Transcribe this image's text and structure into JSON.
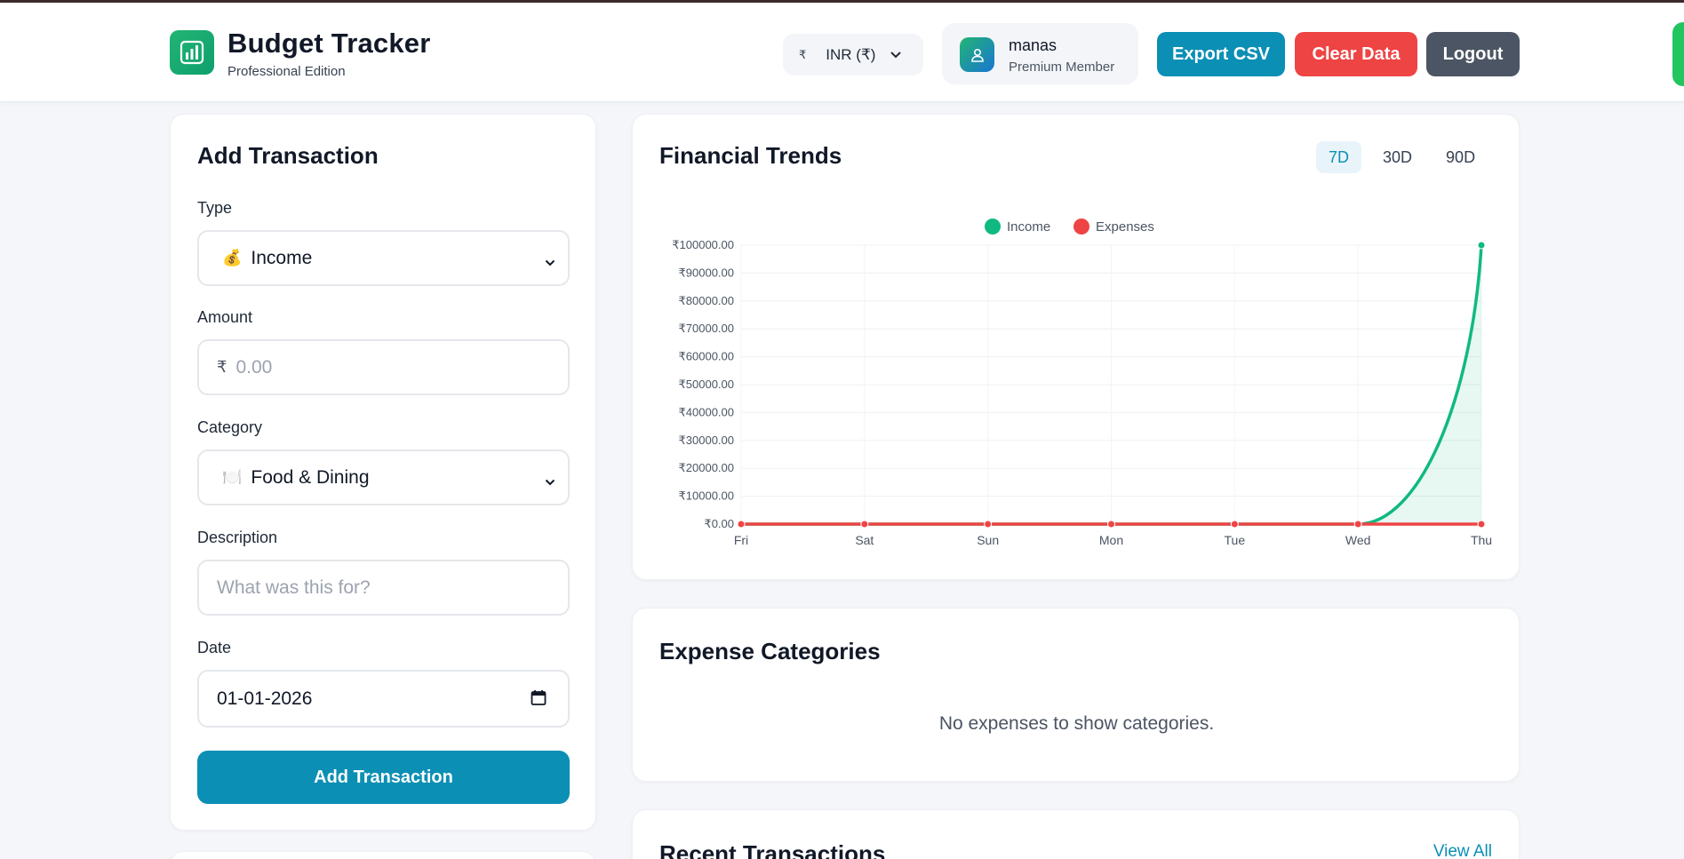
{
  "header": {
    "title": "Budget Tracker",
    "subtitle": "Professional Edition",
    "currency": {
      "symbol": "₹",
      "label": "INR (₹)"
    },
    "user": {
      "name": "manas",
      "role": "Premium Member"
    },
    "buttons": {
      "export": "Export CSV",
      "clear": "Clear Data",
      "logout": "Logout"
    }
  },
  "form": {
    "title": "Add Transaction",
    "type": {
      "label": "Type",
      "icon": "💰",
      "value": "Income"
    },
    "amount": {
      "label": "Amount",
      "prefix": "₹",
      "placeholder": "0.00"
    },
    "category": {
      "label": "Category",
      "icon": "🍽️",
      "value": "Food & Dining"
    },
    "description": {
      "label": "Description",
      "placeholder": "What was this for?"
    },
    "date": {
      "label": "Date",
      "value": "01-01-2026"
    },
    "submit": "Add Transaction"
  },
  "trends": {
    "title": "Financial Trends",
    "ranges": [
      "7D",
      "30D",
      "90D"
    ],
    "active_range": "7D"
  },
  "chart_data": {
    "type": "line",
    "categories": [
      "Fri",
      "Sat",
      "Sun",
      "Mon",
      "Tue",
      "Wed",
      "Thu"
    ],
    "series": [
      {
        "name": "Income",
        "color": "#10b981",
        "values": [
          0,
          0,
          0,
          0,
          0,
          0,
          100000
        ]
      },
      {
        "name": "Expenses",
        "color": "#ef4444",
        "values": [
          0,
          0,
          0,
          0,
          0,
          0,
          0
        ]
      }
    ],
    "ylim": [
      0,
      100000
    ],
    "yticks": [
      "₹0.00",
      "₹10000.00",
      "₹20000.00",
      "₹30000.00",
      "₹40000.00",
      "₹50000.00",
      "₹60000.00",
      "₹70000.00",
      "₹80000.00",
      "₹90000.00",
      "₹100000.00"
    ],
    "legend": "top",
    "grid": true
  },
  "categories_card": {
    "title": "Expense Categories",
    "empty": "No expenses to show categories."
  },
  "recent": {
    "title": "Recent Transactions",
    "view_all": "View All"
  }
}
